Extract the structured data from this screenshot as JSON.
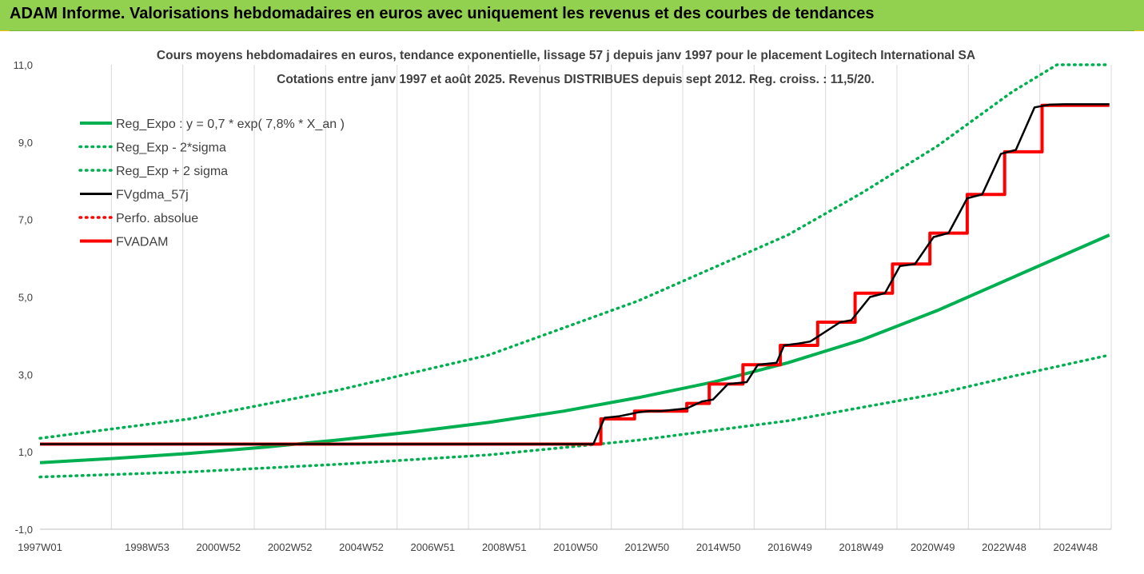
{
  "header": {
    "title": "ADAM Informe. Valorisations hebdomadaires en euros avec uniquement les revenus et des courbes de tendances"
  },
  "colors": {
    "header_bg": "#92d050",
    "green": "#00b050",
    "black": "#000000",
    "red": "#ff0000",
    "grid": "#d9d9d9"
  },
  "chart_data": {
    "type": "line",
    "title": "Cours moyens hebdomadaires en euros, tendance exponentielle, lissage 57 j depuis janv 1997 pour le placement Logitech International SA",
    "subtitle": "Cotations entre janv 1997 et août 2025. Revenus DISTRIBUES depuis sept 2012. Reg. croiss. : 11,5/20.",
    "ylim": [
      -1,
      11
    ],
    "y_ticks": [
      "11,0",
      "9,0",
      "7,0",
      "5,0",
      "3,0",
      "1,0",
      "-1,0"
    ],
    "x_ticks": [
      "1997W01",
      "1998W53",
      "2000W52",
      "2002W52",
      "2004W52",
      "2006W51",
      "2008W51",
      "2010W50",
      "2012W50",
      "2014W50",
      "2016W49",
      "2018W49",
      "2020W49",
      "2022W48",
      "2024W48"
    ],
    "grid": "vertical",
    "legend_position": "top-left",
    "series": [
      {
        "name": "Reg_Expo : y = 0,7 * exp( 7,8% *  X_an )",
        "color": "#00b050",
        "style": "solid",
        "x": [
          1997,
          1999,
          2001,
          2003,
          2005,
          2007,
          2009,
          2011,
          2013,
          2015,
          2017,
          2019,
          2021,
          2023,
          2025.6
        ],
        "y": [
          0.72,
          0.83,
          0.96,
          1.12,
          1.31,
          1.52,
          1.76,
          2.05,
          2.4,
          2.8,
          3.3,
          3.9,
          4.65,
          5.5,
          6.6
        ]
      },
      {
        "name": "Reg_Exp - 2*sigma",
        "color": "#00b050",
        "style": "dotted",
        "x": [
          1997,
          2001,
          2005,
          2009,
          2013,
          2017,
          2021,
          2023,
          2025.6
        ],
        "y": [
          0.35,
          0.48,
          0.68,
          0.92,
          1.3,
          1.8,
          2.5,
          2.95,
          3.5
        ]
      },
      {
        "name": "Reg_Exp + 2 sigma",
        "color": "#00b050",
        "style": "dotted",
        "x": [
          1997,
          2001,
          2005,
          2009,
          2013,
          2017,
          2019,
          2021,
          2023,
          2024.2,
          2025.6
        ],
        "y": [
          1.35,
          1.85,
          2.6,
          3.5,
          4.9,
          6.6,
          7.7,
          8.9,
          10.3,
          11.0,
          11.0
        ]
      },
      {
        "name": "FVgdma_57j",
        "color": "#000000",
        "style": "solid",
        "x": [
          1997,
          2011.8,
          2012.1,
          2012.5,
          2013.0,
          2013.3,
          2013.6,
          2014.3,
          2014.7,
          2015.0,
          2015.4,
          2015.9,
          2016.2,
          2016.7,
          2016.9,
          2017.3,
          2017.6,
          2018.4,
          2018.7,
          2019.2,
          2019.6,
          2020.0,
          2020.4,
          2020.9,
          2021.3,
          2021.8,
          2022.2,
          2022.7,
          2023.1,
          2023.6,
          2024.0,
          2024.4,
          2024.8,
          2025.6
        ],
        "y": [
          1.2,
          1.2,
          1.88,
          1.92,
          2.02,
          2.05,
          2.05,
          2.12,
          2.3,
          2.35,
          2.75,
          2.8,
          3.25,
          3.3,
          3.75,
          3.8,
          3.85,
          4.35,
          4.4,
          5.0,
          5.1,
          5.8,
          5.85,
          6.55,
          6.65,
          7.55,
          7.65,
          8.7,
          8.8,
          9.9,
          9.97,
          9.98,
          9.98,
          9.98
        ]
      },
      {
        "name": "Perfo. absolue",
        "color": "#ff0000",
        "style": "dotted",
        "x": [],
        "y": []
      },
      {
        "name": "FVADAM",
        "color": "#ff0000",
        "style": "solid",
        "x": [
          1997,
          2012.0,
          2012.0,
          2012.9,
          2012.9,
          2014.3,
          2014.3,
          2014.9,
          2014.9,
          2015.8,
          2015.8,
          2016.8,
          2016.8,
          2017.8,
          2017.8,
          2018.8,
          2018.8,
          2019.8,
          2019.8,
          2020.8,
          2020.8,
          2021.8,
          2021.8,
          2022.8,
          2022.8,
          2023.8,
          2023.8,
          2024.7,
          2024.7,
          2025.6
        ],
        "y": [
          1.2,
          1.2,
          1.85,
          1.85,
          2.05,
          2.05,
          2.25,
          2.25,
          2.75,
          2.75,
          3.25,
          3.25,
          3.75,
          3.75,
          4.35,
          4.35,
          5.1,
          5.1,
          5.85,
          5.85,
          6.65,
          6.65,
          7.65,
          7.65,
          8.75,
          8.75,
          9.95,
          9.95,
          9.95,
          9.95
        ]
      }
    ]
  }
}
